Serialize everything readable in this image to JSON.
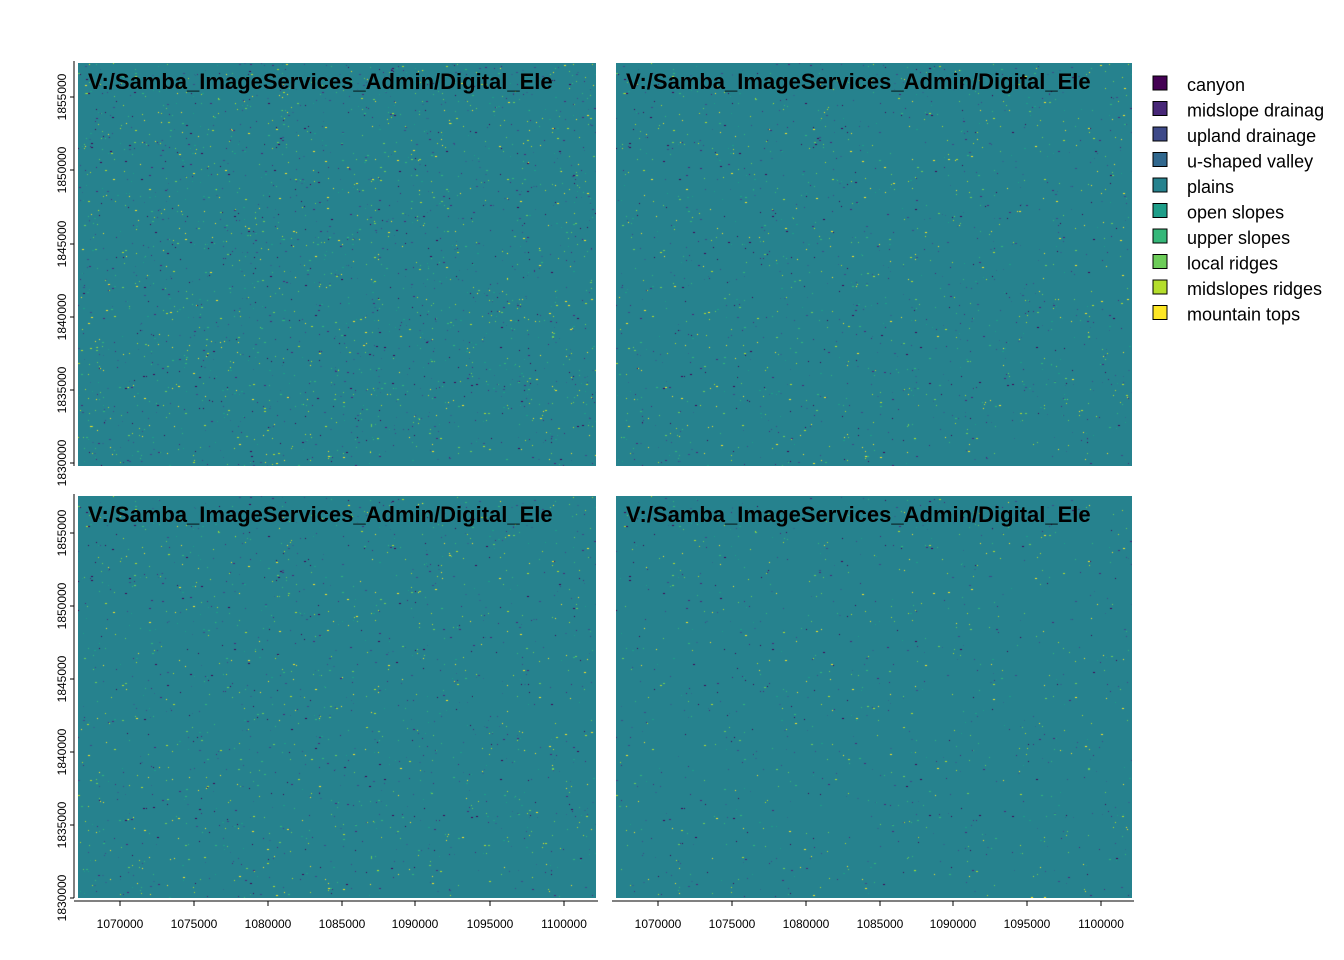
{
  "chart_data": {
    "type": "heatmap",
    "title": "",
    "xlabel": "",
    "ylabel": "",
    "panels": [
      {
        "title": "V:/Samba_ImageServices_Admin/Digital_Ele",
        "speckle_density": 0.16
      },
      {
        "title": "V:/Samba_ImageServices_Admin/Digital_Ele",
        "speckle_density": 0.13
      },
      {
        "title": "V:/Samba_ImageServices_Admin/Digital_Ele",
        "speckle_density": 0.13
      },
      {
        "title": "V:/Samba_ImageServices_Admin/Digital_Ele",
        "speckle_density": 0.025
      }
    ],
    "xlim": [
      1067000,
      1102000
    ],
    "ylim": [
      1830000,
      1857500
    ],
    "x_ticks": [
      "1070000",
      "1075000",
      "1080000",
      "1085000",
      "1090000",
      "1095000",
      "1100000"
    ],
    "y_ticks": [
      "1830000",
      "1835000",
      "1840000",
      "1845000",
      "1850000",
      "1855000"
    ],
    "legend": {
      "placement": "right",
      "entries": [
        {
          "label": "canyon",
          "color": "#440154"
        },
        {
          "label": "midslope drainag",
          "color": "#482878"
        },
        {
          "label": "upland drainage",
          "color": "#3E4A89"
        },
        {
          "label": "u-shaped valley",
          "color": "#31688E"
        },
        {
          "label": "plains",
          "color": "#26828E"
        },
        {
          "label": "open slopes",
          "color": "#1F9E89"
        },
        {
          "label": "upper slopes",
          "color": "#35B779"
        },
        {
          "label": "local ridges",
          "color": "#6DCD59"
        },
        {
          "label": "midslopes ridges",
          "color": "#B4DE2C"
        },
        {
          "label": "mountain tops",
          "color": "#FDE725"
        }
      ]
    },
    "base_color": "#26828E"
  }
}
